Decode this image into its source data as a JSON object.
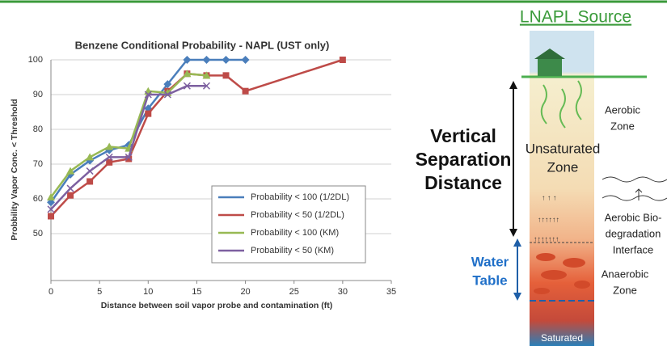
{
  "chart_data": {
    "type": "line",
    "title": "Benzene Conditional Probability - NAPL (UST only)",
    "x_label": "Distance between soil vapor probe and contamination (ft)",
    "y_label": "Probbility Vapor Conc. < Threshold",
    "xlim": [
      0,
      35
    ],
    "xticks": [
      0,
      5,
      10,
      15,
      20,
      25,
      30,
      35
    ],
    "ylim": [
      36.5,
      100
    ],
    "yticks": [
      50,
      60,
      70,
      80,
      90,
      100
    ],
    "grid": true,
    "series": [
      {
        "name": "Probability < 100 (1/2DL)",
        "color": "#4a7ebb",
        "marker": "diamond",
        "x": [
          0,
          2,
          4,
          6,
          8,
          10,
          12,
          14,
          16,
          18,
          20
        ],
        "values": [
          59,
          67,
          71,
          74,
          75.5,
          86,
          93,
          100,
          100,
          100,
          100
        ]
      },
      {
        "name": "Probability < 50 (1/2DL)",
        "color": "#be4b48",
        "marker": "square",
        "x": [
          0,
          2,
          4,
          6,
          8,
          10,
          12,
          14,
          16,
          18,
          20,
          30
        ],
        "values": [
          55,
          61,
          65,
          70.5,
          71.5,
          84.5,
          91,
          96,
          95.5,
          95.5,
          91,
          100
        ]
      },
      {
        "name": "Probability < 100 (KM)",
        "color": "#98b954",
        "marker": "triangle",
        "x": [
          0,
          2,
          4,
          6,
          8,
          10,
          12,
          14,
          16
        ],
        "values": [
          60.5,
          68,
          72,
          75,
          74.5,
          91,
          90.5,
          96,
          95.5
        ]
      },
      {
        "name": "Probability < 50 (KM)",
        "color": "#7d60a0",
        "marker": "cross",
        "x": [
          0,
          2,
          4,
          6,
          8,
          10,
          12,
          14,
          16
        ],
        "values": [
          57,
          63,
          68,
          72,
          72,
          90,
          90,
          92.5,
          92.5
        ]
      }
    ]
  },
  "diagram": {
    "title": "LNAPL Source",
    "separation": [
      "Vertical",
      "Separation",
      "Distance"
    ],
    "unsaturated": [
      "Unsaturated",
      "Zone"
    ],
    "aerobic": [
      "Aerobic",
      "Zone"
    ],
    "interface": [
      "Aerobic Bio-",
      "degradation",
      "Interface"
    ],
    "anaerobic": [
      "Anaerobic",
      "Zone"
    ],
    "water_table": [
      "Water",
      "Table"
    ],
    "saturated": "Saturated"
  }
}
